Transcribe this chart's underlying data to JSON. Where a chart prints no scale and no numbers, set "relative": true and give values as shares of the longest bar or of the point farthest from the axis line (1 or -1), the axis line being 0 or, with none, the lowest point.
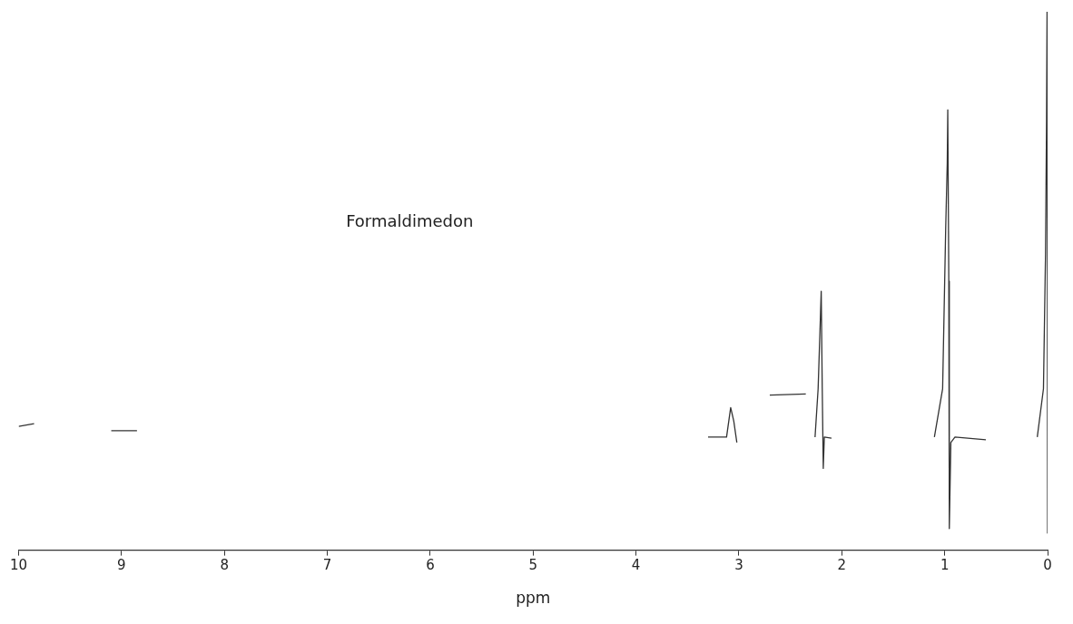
{
  "chart_data": {
    "type": "line",
    "relative": true,
    "xlabel": "ppm",
    "annotations": [
      "Formaldimedon"
    ],
    "xlim": [
      10,
      0
    ],
    "xticks": [
      10,
      9,
      8,
      7,
      6,
      5,
      4,
      3,
      2,
      1,
      0
    ],
    "grid": false,
    "legend": false,
    "marker": "none",
    "line_style": "solid",
    "series": [
      {
        "color": "#333333",
        "x": [
          10,
          9.85,
          9.5,
          9.1,
          8.85,
          8.5,
          3.3,
          3.12,
          3.08,
          3.05,
          3.02,
          2.9,
          2.7,
          2.35,
          2.3,
          2.26,
          2.23,
          2.21,
          2.2,
          2.19,
          2.18,
          2.17,
          2.1,
          1.8,
          1.1,
          1.02,
          0.99,
          0.975,
          0.97,
          0.96,
          0.955,
          0.94,
          0.9,
          0.6,
          0.3,
          0.1,
          0.04,
          0.02,
          0.01,
          0.005,
          0.002,
          0
        ],
        "values": [
          0.23,
          0.235,
          null,
          0.222,
          0.222,
          null,
          0.21,
          0.21,
          0.265,
          0.24,
          0.2,
          null,
          0.288,
          0.29,
          null,
          0.21,
          0.3,
          0.42,
          0.481,
          0.3,
          0.152,
          0.21,
          0.208,
          null,
          0.21,
          0.3,
          0.6,
          0.72,
          0.818,
          0.5,
          0.04,
          0.2,
          0.21,
          0.205,
          null,
          0.21,
          0.3,
          0.55,
          0.8,
          1.0,
          0.5,
          0.031
        ]
      }
    ]
  }
}
